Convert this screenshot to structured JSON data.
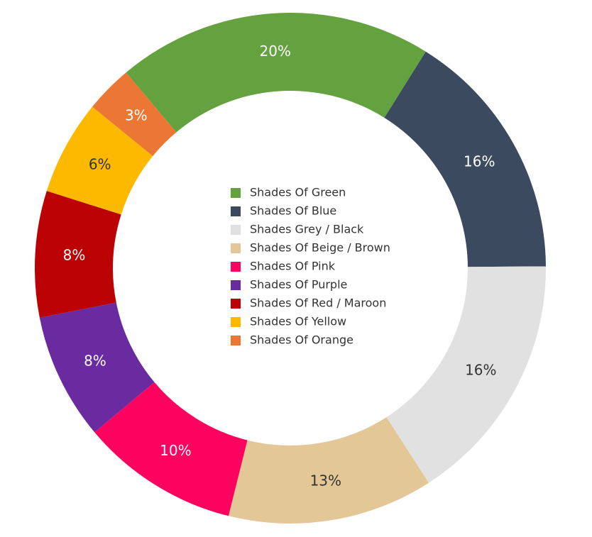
{
  "chart_data": {
    "type": "donut",
    "categories": [
      "Shades Of Green",
      "Shades Of Blue",
      "Shades Grey / Black",
      "Shades Of Beige / Brown",
      "Shades Of Pink",
      "Shades Of Purple",
      "Shades Of Red / Maroon",
      "Shades Of Yellow",
      "Shades Of Orange"
    ],
    "values": [
      20,
      16,
      16,
      13,
      10,
      8,
      8,
      6,
      3
    ],
    "value_labels": [
      "20%",
      "16%",
      "16%",
      "13%",
      "10%",
      "8%",
      "8%",
      "6%",
      "3%"
    ],
    "colors": [
      "#64a23f",
      "#3b4a5f",
      "#e1e1e1",
      "#e3c796",
      "#fc035f",
      "#6a2aa0",
      "#bb0205",
      "#fdb800",
      "#ec7633"
    ],
    "legend": "center"
  }
}
